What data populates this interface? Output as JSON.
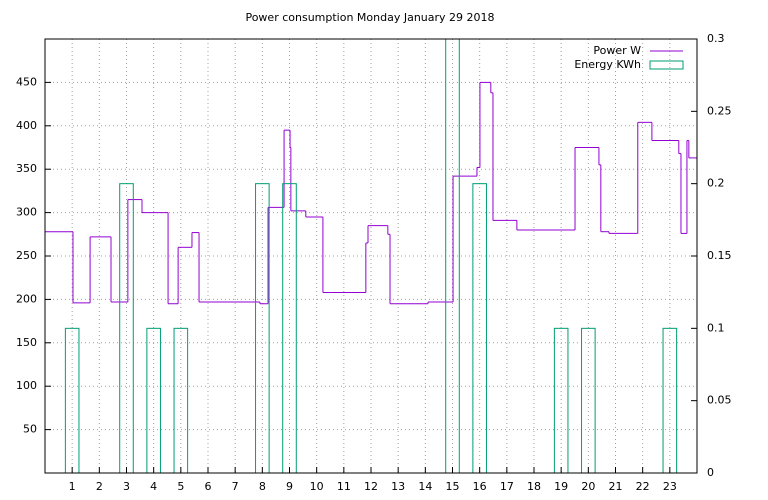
{
  "chart_data": {
    "type": "line",
    "title": "Power consumption Monday January 29 2018",
    "xlim": [
      0,
      24
    ],
    "xticks": [
      1,
      2,
      3,
      4,
      5,
      6,
      7,
      8,
      9,
      10,
      11,
      12,
      13,
      14,
      15,
      16,
      17,
      18,
      19,
      20,
      21,
      22,
      23
    ],
    "ylim": [
      0,
      500
    ],
    "yticks": [
      50,
      100,
      150,
      200,
      250,
      300,
      350,
      400,
      450
    ],
    "y2lim": [
      0,
      0.3
    ],
    "y2ticks": [
      0,
      0.05,
      0.1,
      0.15,
      0.2,
      0.25,
      0.3
    ],
    "grid": true,
    "legend": "top-right",
    "series": [
      {
        "name": "Power W",
        "color": "#9400d3",
        "style": "steps",
        "x": [
          0,
          1.03,
          1.66,
          2.43,
          3.05,
          3.57,
          4.53,
          4.9,
          5.41,
          5.67,
          7.91,
          8.21,
          8.8,
          9.02,
          9.05,
          9.6,
          10.23,
          11.81,
          11.89,
          12.62,
          12.7,
          14.1,
          15.02,
          15.9,
          16.01,
          16.41,
          16.49,
          17.37,
          19.51,
          20.39,
          20.46,
          20.76,
          21.82,
          22.34,
          23.33,
          23.41,
          23.63,
          23.7
        ],
        "values": [
          278,
          196,
          272,
          197,
          315,
          300,
          195,
          260,
          277,
          197,
          195,
          306,
          395,
          375,
          302,
          295,
          208,
          265,
          285,
          275,
          195,
          197,
          342,
          352,
          450,
          438,
          291,
          280,
          375,
          355,
          278,
          276,
          404,
          383,
          368,
          276,
          383,
          363
        ]
      },
      {
        "name": "Energy KWh",
        "color": "#009e73",
        "style": "boxes",
        "axis": "y2",
        "x": [
          1,
          3,
          4,
          5,
          8,
          9,
          15,
          16,
          19,
          20,
          23
        ],
        "values": [
          0.1,
          0.2,
          0.1,
          0.1,
          0.2,
          0.2,
          0.3,
          0.2,
          0.1,
          0.1,
          0.1
        ]
      }
    ]
  }
}
